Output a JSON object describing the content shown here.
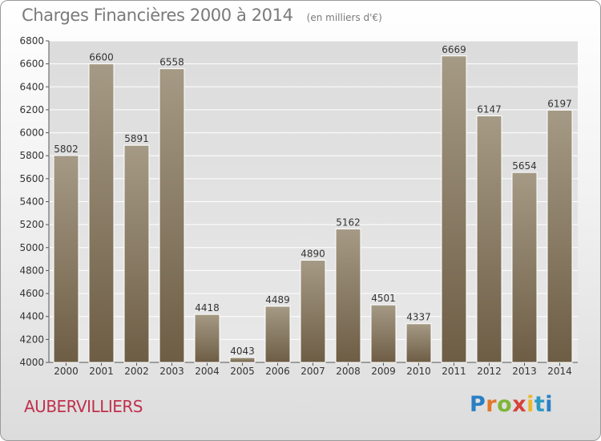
{
  "title": "Charges Financières 2000 à 2014",
  "unit_note": "(en milliers d'€)",
  "city": "AUBERVILLIERS",
  "logo": {
    "text": "Proxiti"
  },
  "colors": {
    "bar_top": "#a59a85",
    "bar_bottom": "#6e5d45",
    "grid": "#ffffff",
    "city": "#c0304c"
  },
  "chart_data": {
    "type": "bar",
    "categories": [
      "2000",
      "2001",
      "2002",
      "2003",
      "2004",
      "2005",
      "2006",
      "2007",
      "2008",
      "2009",
      "2010",
      "2011",
      "2012",
      "2013",
      "2014"
    ],
    "values": [
      5802,
      6600,
      5891,
      6558,
      4418,
      4043,
      4489,
      4890,
      5162,
      4501,
      4337,
      6669,
      6147,
      5654,
      6197
    ],
    "ylim": [
      4000,
      6800
    ],
    "yticks": [
      4000,
      4200,
      4400,
      4600,
      4800,
      5000,
      5200,
      5400,
      5600,
      5800,
      6000,
      6200,
      6400,
      6600,
      6800
    ],
    "grid": true,
    "legend": "none"
  }
}
